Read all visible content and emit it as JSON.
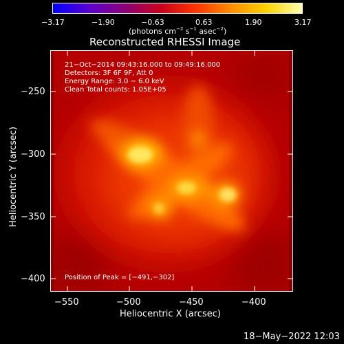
{
  "colorbar": {
    "ticks": [
      "−3.17",
      "−1.90",
      "−0.63",
      "0.63",
      "1.90",
      "3.17"
    ],
    "unit_a": "(photons cm",
    "unit_sup1": "−2",
    "unit_b": " s",
    "unit_sup2": "−1",
    "unit_c": " asec",
    "unit_sup3": "−2",
    "unit_d": ")",
    "colors": [
      "#0000ff",
      "#5a00d0",
      "#8b007a",
      "#c8001e",
      "#ff3200",
      "#ff8c00",
      "#ffd200",
      "#ffffb0"
    ]
  },
  "title": "Reconstructed RHESSI Image",
  "info": {
    "time_range": "21−Oct−2014 09:43:16.000 to 09:49:16.000",
    "detectors": "Detectors: 3F 6F 9F, Att 0",
    "energy": "Energy Range: 3.0 − 6.0 keV",
    "clean": "Clean    Total counts: 1.05E+05",
    "peak": "Position of Peak = [−491,−302]"
  },
  "axes": {
    "xlabel": "Heliocentric X (arcsec)",
    "ylabel": "Heliocentric Y (arcsec)",
    "xticks": [
      "−550",
      "−500",
      "−450",
      "−400"
    ],
    "yticks": [
      "−250",
      "−300",
      "−350",
      "−400"
    ]
  },
  "footer": {
    "timestamp": "18−May−2022 12:03"
  }
}
